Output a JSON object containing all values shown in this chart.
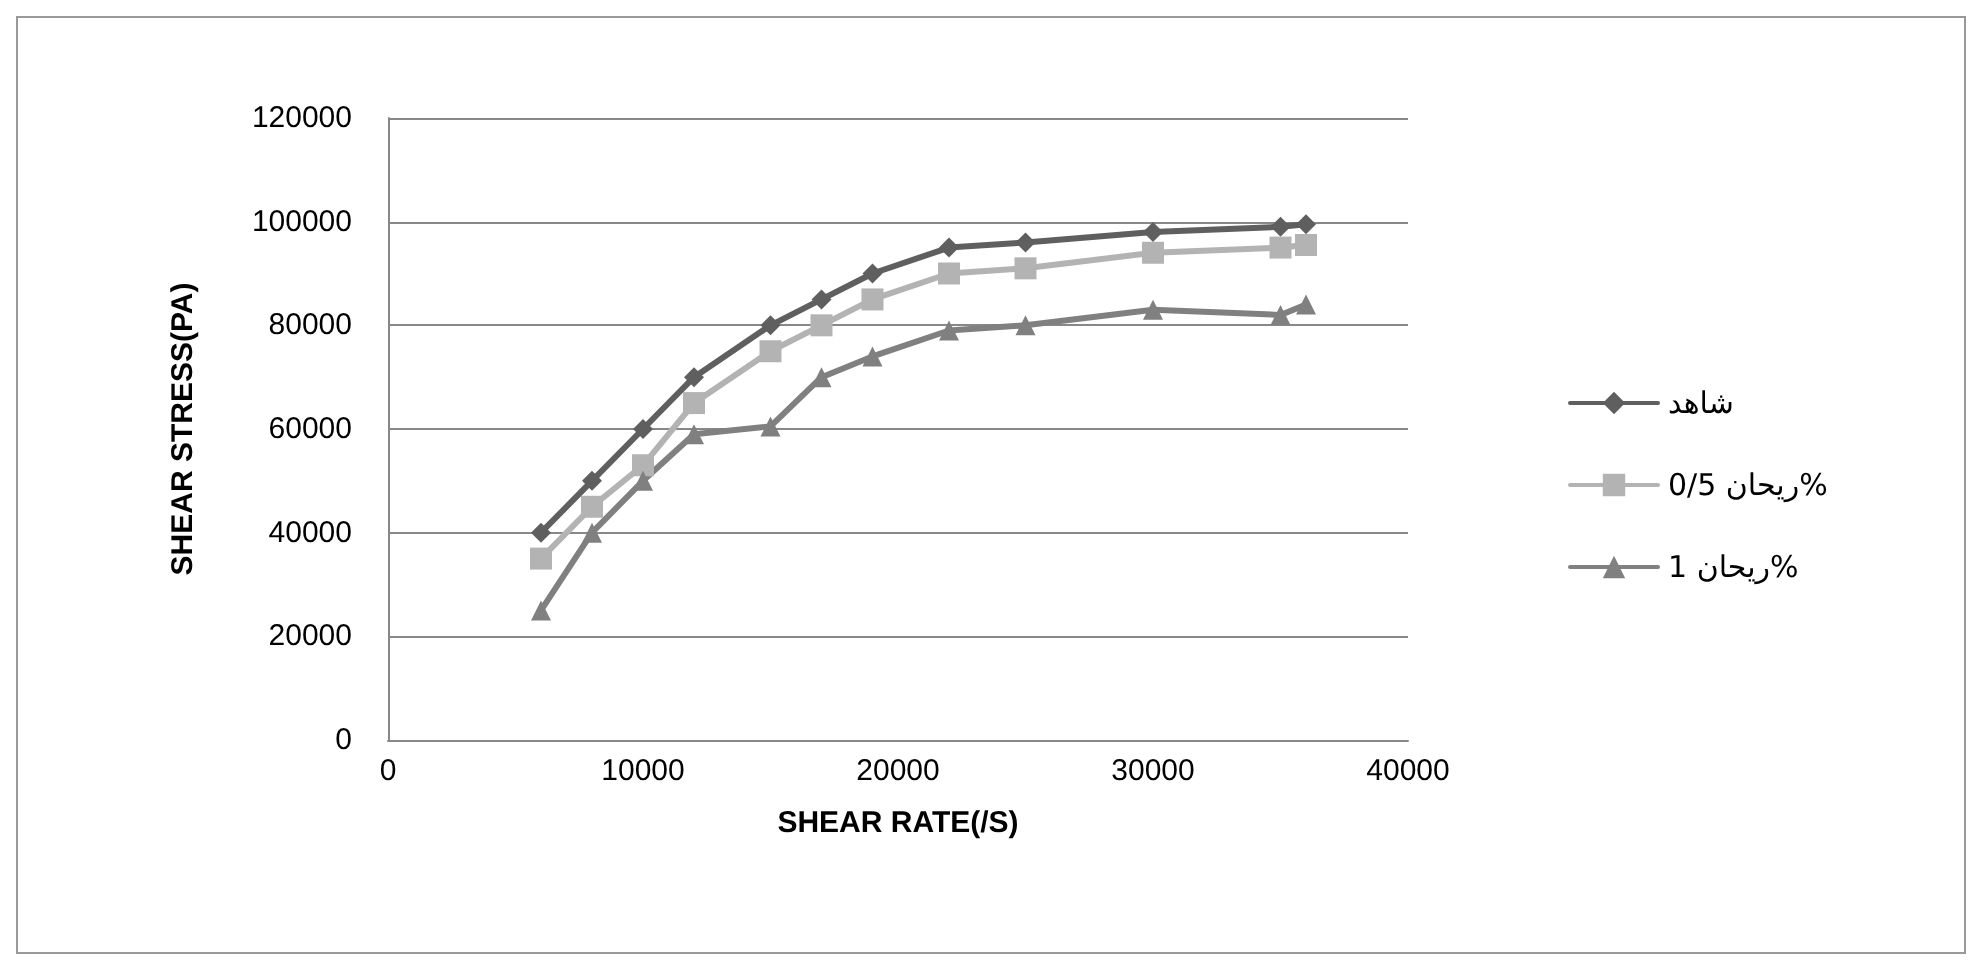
{
  "chart_data": {
    "type": "line",
    "xlabel": "SHEAR RATE(/S)",
    "ylabel": "SHEAR STRESS(PA)",
    "x": [
      6000,
      8000,
      10000,
      12000,
      15000,
      17000,
      19000,
      22000,
      25000,
      30000,
      35000,
      36000
    ],
    "series": [
      {
        "name": "شاهد",
        "color": "#5f5f5f",
        "marker": "diamond",
        "values": [
          40000,
          50000,
          60000,
          70000,
          80000,
          85000,
          90000,
          95000,
          96000,
          98000,
          99000,
          99500
        ]
      },
      {
        "name": "ريحان 0/5%",
        "color": "#b3b3b3",
        "marker": "square",
        "values": [
          35000,
          45000,
          53000,
          65000,
          75000,
          80000,
          85000,
          90000,
          91000,
          94000,
          95000,
          95500
        ]
      },
      {
        "name": "ريحان 1%",
        "color": "#808080",
        "marker": "triangle",
        "values": [
          25000,
          40000,
          50000,
          59000,
          60500,
          70000,
          74000,
          79000,
          80000,
          83000,
          82000,
          84000
        ]
      }
    ],
    "xlim": [
      0,
      40000
    ],
    "xticks": [
      0,
      10000,
      20000,
      30000,
      40000
    ],
    "ylim": [
      0,
      120000
    ],
    "yticks": [
      0,
      20000,
      40000,
      60000,
      80000,
      100000,
      120000
    ],
    "grid": "y",
    "legend": "right"
  }
}
